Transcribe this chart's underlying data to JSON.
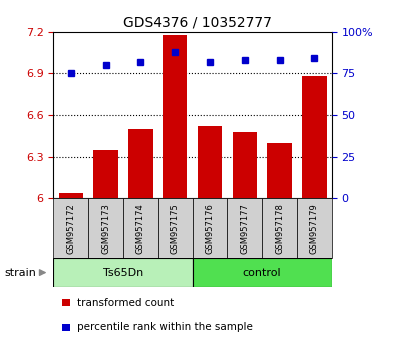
{
  "title": "GDS4376 / 10352777",
  "samples": [
    "GSM957172",
    "GSM957173",
    "GSM957174",
    "GSM957175",
    "GSM957176",
    "GSM957177",
    "GSM957178",
    "GSM957179"
  ],
  "bar_values": [
    6.04,
    6.35,
    6.5,
    7.18,
    6.52,
    6.48,
    6.4,
    6.88
  ],
  "dot_values": [
    75,
    80,
    82,
    88,
    82,
    83,
    83,
    84
  ],
  "bar_color": "#cc0000",
  "dot_color": "#0000cc",
  "ylim_left": [
    6.0,
    7.2
  ],
  "ylim_right": [
    0,
    100
  ],
  "yticks_left": [
    6.0,
    6.3,
    6.6,
    6.9,
    7.2
  ],
  "ytick_labels_left": [
    "6",
    "6.3",
    "6.6",
    "6.9",
    "7.2"
  ],
  "yticks_right": [
    0,
    25,
    50,
    75,
    100
  ],
  "ytick_labels_right": [
    "0",
    "25",
    "50",
    "75",
    "100%"
  ],
  "hgrid_values": [
    6.3,
    6.6,
    6.9
  ],
  "groups": [
    {
      "label": "Ts65Dn",
      "start": 0,
      "end": 3,
      "color": "#b8f0b8"
    },
    {
      "label": "control",
      "start": 4,
      "end": 7,
      "color": "#50e050"
    }
  ],
  "strain_label": "strain",
  "legend_items": [
    {
      "label": "transformed count",
      "color": "#cc0000"
    },
    {
      "label": "percentile rank within the sample",
      "color": "#0000cc"
    }
  ],
  "bar_base": 6.0,
  "bar_width": 0.7,
  "bg_color": "#ffffff",
  "plot_bg": "#ffffff",
  "axis_color_left": "#cc0000",
  "axis_color_right": "#0000cc"
}
